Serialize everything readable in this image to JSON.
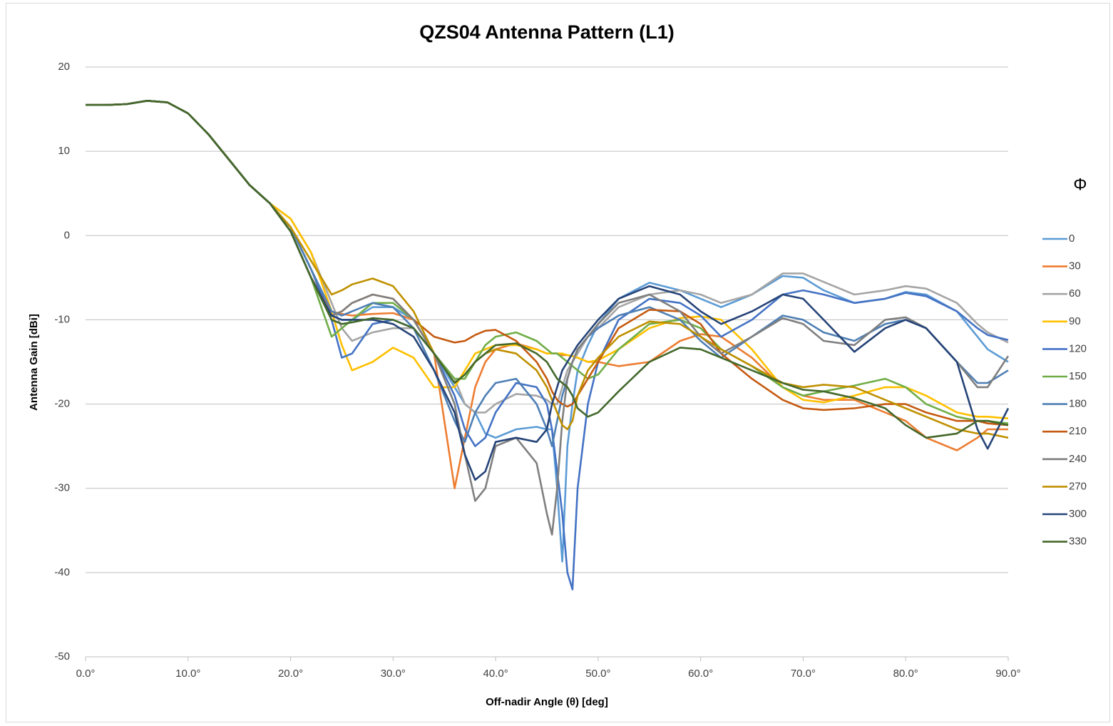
{
  "chart_data": {
    "type": "line",
    "title": "QZS04 Antenna Pattern (L1)",
    "x_label": "Off-nadir Angle (θ) [deg]",
    "y_label": "Antenna Gain [dBi]",
    "legend_title": "Φ",
    "legend_position": "right",
    "grid": true,
    "xlim": [
      0,
      90
    ],
    "ylim": [
      -50,
      20
    ],
    "xticks": [
      {
        "value": 0,
        "label": "0.0°"
      },
      {
        "value": 10,
        "label": "10.0°"
      },
      {
        "value": 20,
        "label": "20.0°"
      },
      {
        "value": 30,
        "label": "30.0°"
      },
      {
        "value": 40,
        "label": "40.0°"
      },
      {
        "value": 50,
        "label": "50.0°"
      },
      {
        "value": 60,
        "label": "60.0°"
      },
      {
        "value": 70,
        "label": "70.0°"
      },
      {
        "value": 80,
        "label": "80.0°"
      },
      {
        "value": 90,
        "label": "90.0°"
      }
    ],
    "yticks": [
      -50,
      -40,
      -30,
      -20,
      -10,
      0,
      10,
      20
    ],
    "x": [
      0,
      2,
      4,
      6,
      8,
      10,
      12,
      14,
      16,
      18,
      20,
      22,
      24,
      25,
      26,
      28,
      30,
      32,
      34,
      36,
      37,
      38,
      39,
      40,
      42,
      44,
      45,
      45.5,
      46,
      46.5,
      47,
      47.5,
      48,
      49,
      50,
      52,
      55,
      58,
      60,
      62,
      65,
      68,
      70,
      72,
      75,
      78,
      80,
      82,
      85,
      87,
      88,
      90
    ],
    "series": [
      {
        "name": "0",
        "color": "#5b9bd5",
        "values": [
          15.5,
          15.5,
          15.6,
          16,
          15.8,
          14.5,
          12,
          9,
          6,
          3.8,
          1,
          -4,
          -9.5,
          -10,
          -10,
          -8.5,
          -8.5,
          -10,
          -14,
          -18,
          -20,
          -21,
          -23.5,
          -24,
          -23,
          -22.7,
          -23,
          -23,
          -30,
          -38.7,
          -25,
          -20,
          -16,
          -13,
          -10.5,
          -7.5,
          -5.6,
          -6.5,
          -7.5,
          -8.5,
          -7,
          -4.8,
          -5,
          -6.5,
          -8,
          -7.5,
          -6.7,
          -7,
          -9,
          -12,
          -13.5,
          -15
        ]
      },
      {
        "name": "30",
        "color": "#ed7d31",
        "values": [
          15.5,
          15.5,
          15.6,
          16,
          15.8,
          14.5,
          12,
          9,
          6,
          3.8,
          0.5,
          -5,
          -9,
          -9.3,
          -9.5,
          -9.3,
          -9.2,
          -10,
          -14,
          -30,
          -24,
          -18,
          -15,
          -13.5,
          -12.8,
          -13.5,
          -14,
          -14,
          -14,
          -14.2,
          -14.2,
          -14.3,
          -14.5,
          -15,
          -15,
          -15.5,
          -15,
          -12.5,
          -11.7,
          -12,
          -14.5,
          -18,
          -19,
          -19.5,
          -19.5,
          -21,
          -22,
          -24,
          -25.5,
          -24,
          -23,
          -23
        ]
      },
      {
        "name": "60",
        "color": "#a5a5a5",
        "values": [
          15.5,
          15.5,
          15.6,
          16,
          15.8,
          14.5,
          12,
          9,
          6,
          3.8,
          2,
          -2,
          -8,
          -11,
          -12.5,
          -11.5,
          -11,
          -11,
          -14,
          -17,
          -20,
          -21,
          -21,
          -20,
          -18.8,
          -19,
          -19.5,
          -20,
          -20,
          -18,
          -16,
          -15,
          -14,
          -12,
          -11,
          -8.5,
          -7,
          -6.5,
          -7,
          -8,
          -7,
          -4.5,
          -4.5,
          -5.5,
          -7,
          -6.5,
          -6,
          -6.3,
          -8,
          -10.5,
          -11.5,
          -12.7
        ]
      },
      {
        "name": "90",
        "color": "#ffc000",
        "values": [
          15.5,
          15.5,
          15.6,
          16,
          15.8,
          14.5,
          12,
          9,
          6,
          3.8,
          2,
          -2,
          -9,
          -13,
          -16,
          -15,
          -13.3,
          -14.5,
          -18,
          -18,
          -16,
          -14,
          -13.5,
          -13,
          -13,
          -13.5,
          -14,
          -14,
          -14,
          -14,
          -14.2,
          -14.3,
          -14.5,
          -15,
          -14.8,
          -13.5,
          -11,
          -9.8,
          -9.6,
          -10,
          -13.5,
          -18,
          -19.5,
          -19.8,
          -19,
          -18,
          -18,
          -19,
          -21,
          -21.5,
          -21.5,
          -21.7
        ]
      },
      {
        "name": "120",
        "color": "#4472c4",
        "values": [
          15.5,
          15.5,
          15.6,
          16,
          15.8,
          14.5,
          12,
          9,
          6,
          3.8,
          1,
          -4,
          -10,
          -14.5,
          -14,
          -10.5,
          -10,
          -11,
          -14,
          -19,
          -23,
          -25,
          -24,
          -21,
          -17.5,
          -18,
          -20,
          -23,
          -28,
          -33,
          -40,
          -42,
          -30,
          -20,
          -15,
          -10,
          -7.5,
          -8,
          -9.5,
          -12,
          -10,
          -7,
          -6.5,
          -7,
          -8,
          -7.5,
          -6.8,
          -7.2,
          -9,
          -11,
          -11.8,
          -12.4
        ]
      },
      {
        "name": "150",
        "color": "#70ad47",
        "values": [
          15.5,
          15.5,
          15.6,
          16,
          15.8,
          14.5,
          12,
          9,
          6,
          3.8,
          0.5,
          -5,
          -12,
          -11,
          -10,
          -8,
          -8,
          -10,
          -14,
          -17,
          -17,
          -15,
          -13,
          -12,
          -11.5,
          -12.5,
          -13.5,
          -14,
          -14,
          -14.5,
          -15,
          -15.5,
          -16,
          -17,
          -16.5,
          -13.5,
          -10.5,
          -10,
          -11,
          -13.5,
          -15.5,
          -18,
          -19,
          -18.5,
          -17.8,
          -17,
          -18,
          -20,
          -21.5,
          -22,
          -22,
          -22.3
        ]
      },
      {
        "name": "180",
        "color": "#4e7fb5",
        "values": [
          15.5,
          15.5,
          15.6,
          16,
          15.8,
          14.5,
          12,
          9,
          6,
          3.8,
          1,
          -4,
          -9,
          -9.5,
          -9,
          -8,
          -8.5,
          -11,
          -16,
          -22,
          -24.5,
          -21,
          -19,
          -17.5,
          -17,
          -20,
          -23,
          -25,
          -22,
          -19,
          -17,
          -15,
          -13.5,
          -12,
          -11,
          -9.5,
          -8.5,
          -10,
          -12.5,
          -14.5,
          -12,
          -9.5,
          -10,
          -11.5,
          -12.5,
          -10.5,
          -10,
          -11,
          -15,
          -17.5,
          -17.5,
          -16
        ]
      },
      {
        "name": "210",
        "color": "#c55a11",
        "values": [
          15.5,
          15.5,
          15.6,
          16,
          15.8,
          14.5,
          12,
          9,
          6,
          3.8,
          0.5,
          -5,
          -9.5,
          -9,
          -8,
          -7,
          -7.5,
          -10,
          -12,
          -12.7,
          -12.5,
          -11.8,
          -11.3,
          -11.2,
          -12.5,
          -15,
          -17,
          -18.5,
          -19.5,
          -20,
          -20.3,
          -20,
          -19,
          -17,
          -15,
          -11,
          -8.8,
          -9,
          -10.5,
          -14,
          -17,
          -19.5,
          -20.5,
          -20.7,
          -20.5,
          -20,
          -20,
          -21,
          -22,
          -22,
          -22.3,
          -22.5
        ]
      },
      {
        "name": "240",
        "color": "#7f7f7f",
        "values": [
          15.5,
          15.5,
          15.6,
          16,
          15.8,
          14.5,
          12,
          9,
          6,
          3.8,
          0.5,
          -5,
          -9.5,
          -9,
          -8,
          -7,
          -7.5,
          -10,
          -14,
          -20,
          -26,
          -31.5,
          -30,
          -25,
          -24,
          -27,
          -33,
          -35.5,
          -30,
          -22,
          -17,
          -15,
          -13.5,
          -12,
          -10.5,
          -8,
          -7,
          -9,
          -12,
          -14,
          -12,
          -9.8,
          -10.5,
          -12.5,
          -13,
          -10,
          -9.7,
          -11,
          -15,
          -18,
          -18,
          -14.3
        ]
      },
      {
        "name": "270",
        "color": "#bf9000",
        "values": [
          15.5,
          15.5,
          15.6,
          16,
          15.8,
          14.5,
          12,
          9,
          6,
          3.8,
          1,
          -3,
          -7,
          -6.5,
          -5.8,
          -5.1,
          -6,
          -9,
          -14,
          -17.5,
          -16.5,
          -15,
          -14,
          -13.5,
          -14,
          -16,
          -18,
          -19.5,
          -21,
          -22.5,
          -23,
          -22,
          -19,
          -16,
          -14.5,
          -12,
          -10.2,
          -10.5,
          -12,
          -13.5,
          -15.5,
          -17.5,
          -18,
          -17.7,
          -18,
          -19.5,
          -20.5,
          -21.5,
          -23,
          -23.5,
          -23.5,
          -24
        ]
      },
      {
        "name": "300",
        "color": "#264478",
        "values": [
          15.5,
          15.5,
          15.6,
          16,
          15.8,
          14.5,
          12,
          9,
          6,
          3.8,
          0.5,
          -5,
          -9.5,
          -10,
          -10,
          -10,
          -10.5,
          -12,
          -16,
          -21,
          -26,
          -29,
          -28,
          -24.5,
          -24,
          -24.5,
          -23,
          -20,
          -18,
          -16,
          -15,
          -14,
          -13,
          -11.5,
          -10,
          -7.5,
          -6,
          -7,
          -9,
          -10.5,
          -9,
          -7,
          -7.5,
          -10,
          -13.8,
          -11,
          -10,
          -11,
          -15,
          -23,
          -25.3,
          -20.5
        ]
      },
      {
        "name": "330",
        "color": "#43682b",
        "values": [
          15.5,
          15.5,
          15.6,
          16,
          15.8,
          14.5,
          12,
          9,
          6,
          3.8,
          0.5,
          -5,
          -10,
          -10.5,
          -10.3,
          -9.8,
          -10,
          -11,
          -14,
          -17.5,
          -16.5,
          -15,
          -14,
          -13,
          -12.8,
          -14,
          -15,
          -16,
          -17,
          -17.5,
          -18,
          -19,
          -20.5,
          -21.5,
          -21,
          -18.5,
          -15,
          -13.3,
          -13.5,
          -14.5,
          -16,
          -17.5,
          -18.3,
          -18.5,
          -19.3,
          -20.5,
          -22.5,
          -24,
          -23.5,
          -22,
          -22,
          -22.5
        ]
      }
    ]
  }
}
